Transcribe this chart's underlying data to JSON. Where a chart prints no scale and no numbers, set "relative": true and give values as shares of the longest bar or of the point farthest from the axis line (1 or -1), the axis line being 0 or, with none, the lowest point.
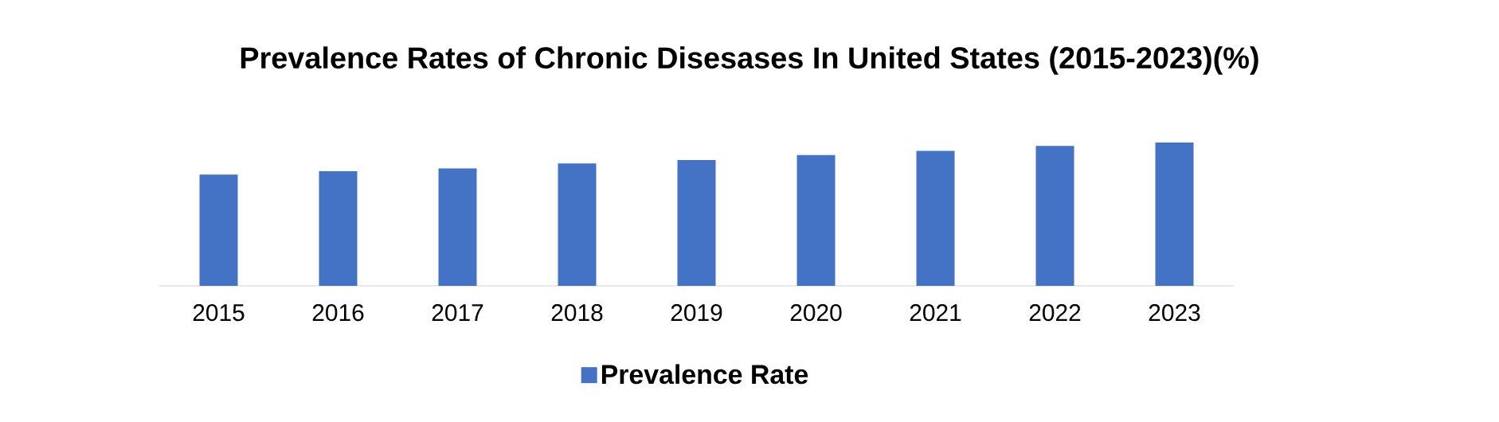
{
  "chart_data": {
    "type": "bar",
    "title": "Prevalence Rates of Chronic Disesases In United States (2015-2023)(%)",
    "relative": true,
    "categories": [
      "2015",
      "2016",
      "2017",
      "2018",
      "2019",
      "2020",
      "2021",
      "2022",
      "2023"
    ],
    "series": [
      {
        "name": "Prevalence Rate",
        "color": "#4472c4",
        "values": [
          0.776,
          0.8,
          0.82,
          0.854,
          0.878,
          0.912,
          0.941,
          0.976,
          1
        ]
      }
    ],
    "legend": "bottom"
  }
}
